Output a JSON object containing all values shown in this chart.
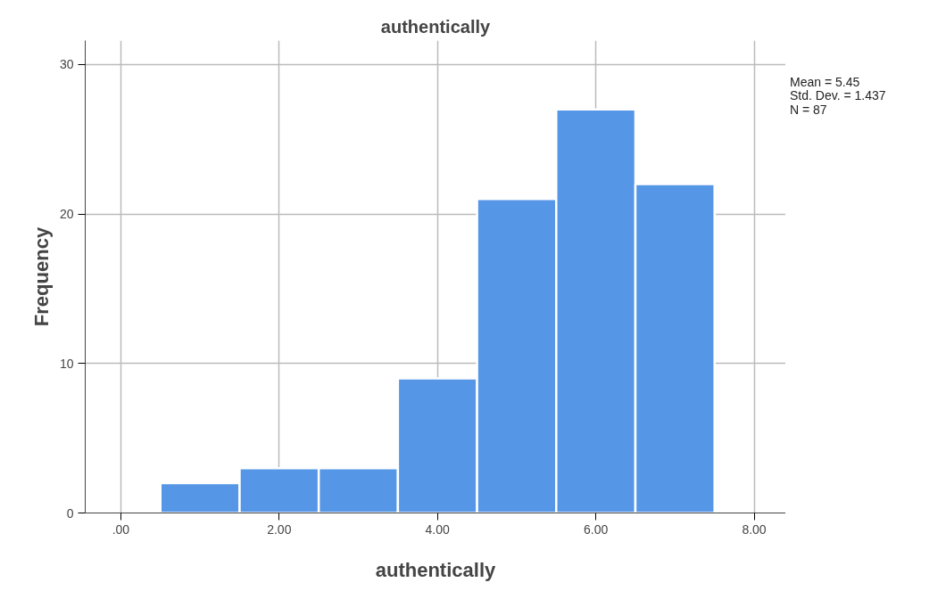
{
  "chart_data": {
    "type": "histogram",
    "title": "authentically",
    "xlabel": "authentically",
    "ylabel": "Frequency",
    "bins": [
      0.5,
      1.5,
      2.5,
      3.5,
      4.5,
      5.5,
      6.5,
      7.5
    ],
    "values": [
      2,
      3,
      3,
      9,
      21,
      27,
      22
    ],
    "color": "#5596e6",
    "xlim": [
      -0.45,
      8.4
    ],
    "xticks": [
      {
        "value": 0,
        "label": ".00"
      },
      {
        "value": 2,
        "label": "2.00"
      },
      {
        "value": 4,
        "label": "4.00"
      },
      {
        "value": 6,
        "label": "6.00"
      },
      {
        "value": 8,
        "label": "8.00"
      }
    ],
    "ylim": [
      0,
      31.6
    ],
    "yticks": [
      0,
      10,
      20,
      30
    ],
    "grid": true,
    "annotations": [
      "Mean = 5.45",
      "Std. Dev. = 1.437",
      "N = 87"
    ]
  }
}
